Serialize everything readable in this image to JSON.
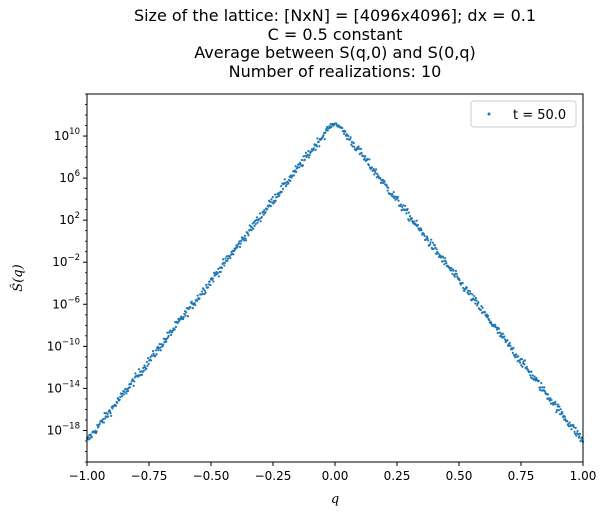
{
  "chart_data": {
    "type": "scatter",
    "title_lines": [
      "Size of the lattice: [NxN] = [4096x4096]; dx = 0.1",
      "C = 0.5 constant",
      "Average between S(q,0) and S(0,q)",
      "Number of realizations: 10"
    ],
    "xlabel": "q",
    "ylabel": "Ŝ(q)",
    "xlim": [
      -1.0,
      1.0
    ],
    "ylog_lim": [
      -21.0,
      14.0
    ],
    "x_ticks": [
      -1.0,
      -0.75,
      -0.5,
      -0.25,
      0.0,
      0.25,
      0.5,
      0.75,
      1.0
    ],
    "x_tick_labels": [
      "−1.00",
      "−0.75",
      "−0.50",
      "−0.25",
      "0.00",
      "0.25",
      "0.50",
      "0.75",
      "1.00"
    ],
    "y_ticks_exp": [
      -18,
      -14,
      -10,
      -6,
      -2,
      2,
      6,
      10
    ],
    "y_tick_labels": [
      {
        "base": "10",
        "exp": "−18"
      },
      {
        "base": "10",
        "exp": "−14"
      },
      {
        "base": "10",
        "exp": "−10"
      },
      {
        "base": "10",
        "exp": "−6"
      },
      {
        "base": "10",
        "exp": "−2"
      },
      {
        "base": "10",
        "exp": "2"
      },
      {
        "base": "10",
        "exp": "6"
      },
      {
        "base": "10",
        "exp": "10"
      }
    ],
    "legend": {
      "label": "t = 50.0",
      "position": "top-right"
    },
    "series": [
      {
        "name": "t = 50.0",
        "color": "#1f77b4",
        "marker": "point",
        "model": "log10(S) = 11.5 - 30.5*|q| for |q| >= 0.02; peak 11.2 at q = 0",
        "x": [
          -1.0,
          -0.75,
          -0.5,
          -0.25,
          -0.02,
          0.0,
          0.02,
          0.25,
          0.5,
          0.75,
          1.0
        ],
        "log10_y": [
          -19.0,
          -11.4,
          -3.75,
          3.9,
          10.9,
          11.2,
          10.9,
          3.9,
          -3.75,
          -11.4,
          -19.0
        ]
      }
    ],
    "grid": false
  }
}
